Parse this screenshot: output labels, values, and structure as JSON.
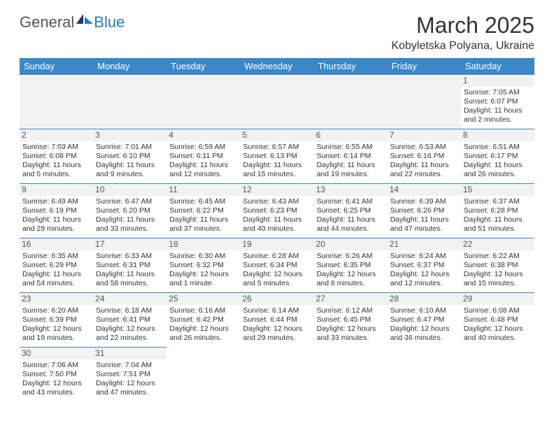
{
  "logo": {
    "part1": "General",
    "part2": "Blue"
  },
  "title": "March 2025",
  "location": "Kobyletska Polyana, Ukraine",
  "colors": {
    "header_bg": "#3b87c8",
    "header_fg": "#ffffff",
    "daynum_bg": "#f2f2f2",
    "cell_border": "#3b87c8",
    "logo_accent": "#2a7ac0"
  },
  "weekdays": [
    "Sunday",
    "Monday",
    "Tuesday",
    "Wednesday",
    "Thursday",
    "Friday",
    "Saturday"
  ],
  "weeks": [
    [
      null,
      null,
      null,
      null,
      null,
      null,
      {
        "n": "1",
        "sr": "Sunrise: 7:05 AM",
        "ss": "Sunset: 6:07 PM",
        "d1": "Daylight: 11 hours",
        "d2": "and 2 minutes."
      }
    ],
    [
      {
        "n": "2",
        "sr": "Sunrise: 7:03 AM",
        "ss": "Sunset: 6:08 PM",
        "d1": "Daylight: 11 hours",
        "d2": "and 5 minutes."
      },
      {
        "n": "3",
        "sr": "Sunrise: 7:01 AM",
        "ss": "Sunset: 6:10 PM",
        "d1": "Daylight: 11 hours",
        "d2": "and 9 minutes."
      },
      {
        "n": "4",
        "sr": "Sunrise: 6:59 AM",
        "ss": "Sunset: 6:11 PM",
        "d1": "Daylight: 11 hours",
        "d2": "and 12 minutes."
      },
      {
        "n": "5",
        "sr": "Sunrise: 6:57 AM",
        "ss": "Sunset: 6:13 PM",
        "d1": "Daylight: 11 hours",
        "d2": "and 15 minutes."
      },
      {
        "n": "6",
        "sr": "Sunrise: 6:55 AM",
        "ss": "Sunset: 6:14 PM",
        "d1": "Daylight: 11 hours",
        "d2": "and 19 minutes."
      },
      {
        "n": "7",
        "sr": "Sunrise: 6:53 AM",
        "ss": "Sunset: 6:16 PM",
        "d1": "Daylight: 11 hours",
        "d2": "and 22 minutes."
      },
      {
        "n": "8",
        "sr": "Sunrise: 6:51 AM",
        "ss": "Sunset: 6:17 PM",
        "d1": "Daylight: 11 hours",
        "d2": "and 26 minutes."
      }
    ],
    [
      {
        "n": "9",
        "sr": "Sunrise: 6:49 AM",
        "ss": "Sunset: 6:19 PM",
        "d1": "Daylight: 11 hours",
        "d2": "and 29 minutes."
      },
      {
        "n": "10",
        "sr": "Sunrise: 6:47 AM",
        "ss": "Sunset: 6:20 PM",
        "d1": "Daylight: 11 hours",
        "d2": "and 33 minutes."
      },
      {
        "n": "11",
        "sr": "Sunrise: 6:45 AM",
        "ss": "Sunset: 6:22 PM",
        "d1": "Daylight: 11 hours",
        "d2": "and 37 minutes."
      },
      {
        "n": "12",
        "sr": "Sunrise: 6:43 AM",
        "ss": "Sunset: 6:23 PM",
        "d1": "Daylight: 11 hours",
        "d2": "and 40 minutes."
      },
      {
        "n": "13",
        "sr": "Sunrise: 6:41 AM",
        "ss": "Sunset: 6:25 PM",
        "d1": "Daylight: 11 hours",
        "d2": "and 44 minutes."
      },
      {
        "n": "14",
        "sr": "Sunrise: 6:39 AM",
        "ss": "Sunset: 6:26 PM",
        "d1": "Daylight: 11 hours",
        "d2": "and 47 minutes."
      },
      {
        "n": "15",
        "sr": "Sunrise: 6:37 AM",
        "ss": "Sunset: 6:28 PM",
        "d1": "Daylight: 11 hours",
        "d2": "and 51 minutes."
      }
    ],
    [
      {
        "n": "16",
        "sr": "Sunrise: 6:35 AM",
        "ss": "Sunset: 6:29 PM",
        "d1": "Daylight: 11 hours",
        "d2": "and 54 minutes."
      },
      {
        "n": "17",
        "sr": "Sunrise: 6:33 AM",
        "ss": "Sunset: 6:31 PM",
        "d1": "Daylight: 11 hours",
        "d2": "and 58 minutes."
      },
      {
        "n": "18",
        "sr": "Sunrise: 6:30 AM",
        "ss": "Sunset: 6:32 PM",
        "d1": "Daylight: 12 hours",
        "d2": "and 1 minute."
      },
      {
        "n": "19",
        "sr": "Sunrise: 6:28 AM",
        "ss": "Sunset: 6:34 PM",
        "d1": "Daylight: 12 hours",
        "d2": "and 5 minutes."
      },
      {
        "n": "20",
        "sr": "Sunrise: 6:26 AM",
        "ss": "Sunset: 6:35 PM",
        "d1": "Daylight: 12 hours",
        "d2": "and 8 minutes."
      },
      {
        "n": "21",
        "sr": "Sunrise: 6:24 AM",
        "ss": "Sunset: 6:37 PM",
        "d1": "Daylight: 12 hours",
        "d2": "and 12 minutes."
      },
      {
        "n": "22",
        "sr": "Sunrise: 6:22 AM",
        "ss": "Sunset: 6:38 PM",
        "d1": "Daylight: 12 hours",
        "d2": "and 15 minutes."
      }
    ],
    [
      {
        "n": "23",
        "sr": "Sunrise: 6:20 AM",
        "ss": "Sunset: 6:39 PM",
        "d1": "Daylight: 12 hours",
        "d2": "and 19 minutes."
      },
      {
        "n": "24",
        "sr": "Sunrise: 6:18 AM",
        "ss": "Sunset: 6:41 PM",
        "d1": "Daylight: 12 hours",
        "d2": "and 22 minutes."
      },
      {
        "n": "25",
        "sr": "Sunrise: 6:16 AM",
        "ss": "Sunset: 6:42 PM",
        "d1": "Daylight: 12 hours",
        "d2": "and 26 minutes."
      },
      {
        "n": "26",
        "sr": "Sunrise: 6:14 AM",
        "ss": "Sunset: 6:44 PM",
        "d1": "Daylight: 12 hours",
        "d2": "and 29 minutes."
      },
      {
        "n": "27",
        "sr": "Sunrise: 6:12 AM",
        "ss": "Sunset: 6:45 PM",
        "d1": "Daylight: 12 hours",
        "d2": "and 33 minutes."
      },
      {
        "n": "28",
        "sr": "Sunrise: 6:10 AM",
        "ss": "Sunset: 6:47 PM",
        "d1": "Daylight: 12 hours",
        "d2": "and 36 minutes."
      },
      {
        "n": "29",
        "sr": "Sunrise: 6:08 AM",
        "ss": "Sunset: 6:48 PM",
        "d1": "Daylight: 12 hours",
        "d2": "and 40 minutes."
      }
    ],
    [
      {
        "n": "30",
        "sr": "Sunrise: 7:06 AM",
        "ss": "Sunset: 7:50 PM",
        "d1": "Daylight: 12 hours",
        "d2": "and 43 minutes."
      },
      {
        "n": "31",
        "sr": "Sunrise: 7:04 AM",
        "ss": "Sunset: 7:51 PM",
        "d1": "Daylight: 12 hours",
        "d2": "and 47 minutes."
      },
      null,
      null,
      null,
      null,
      null
    ]
  ]
}
